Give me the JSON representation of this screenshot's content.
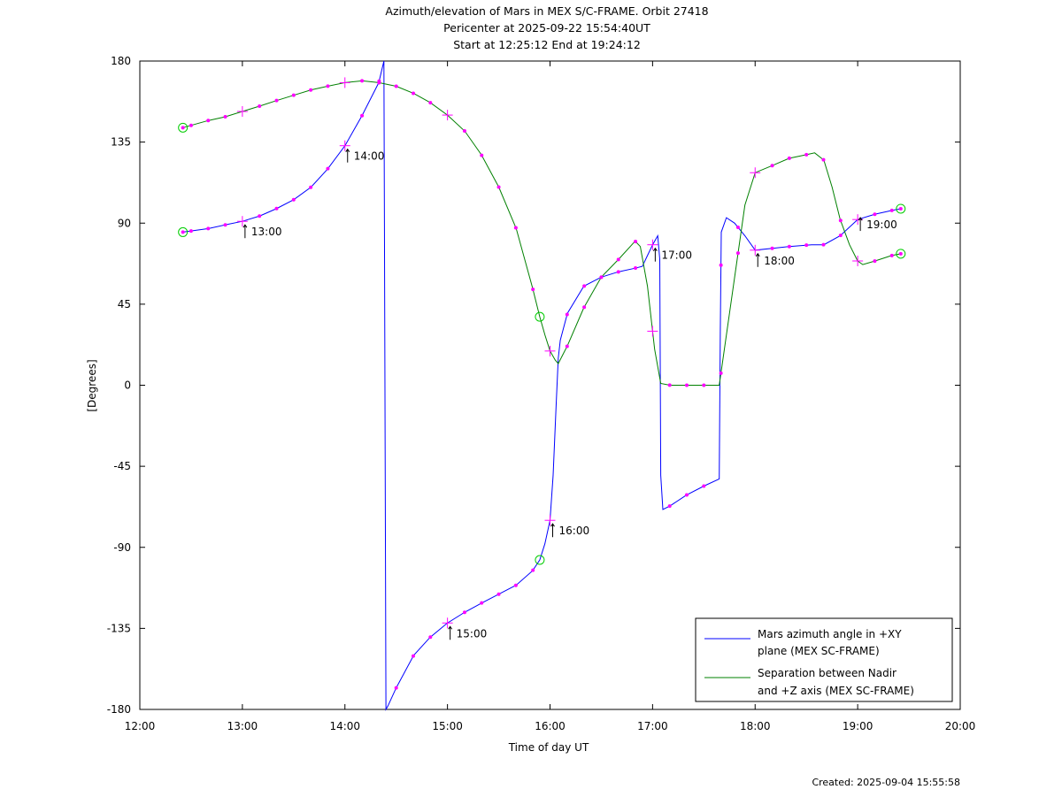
{
  "titles": [
    "Azimuth/elevation of Mars in MEX S/C-FRAME.  Orbit 27418",
    "Pericenter at 2025-09-22 15:54:40UT",
    "Start at 12:25:12 End at 19:24:12"
  ],
  "footer": "Created: 2025-09-04 15:55:58",
  "chart_data": {
    "type": "line",
    "xlabel": "Time of day UT",
    "ylabel": "[Degrees]",
    "xlim": [
      12.0,
      20.0
    ],
    "ylim": [
      -180,
      180
    ],
    "x_ticks": [
      12,
      13,
      14,
      15,
      16,
      17,
      18,
      19,
      20
    ],
    "x_tick_labels": [
      "12:00",
      "13:00",
      "14:00",
      "15:00",
      "16:00",
      "17:00",
      "18:00",
      "19:00",
      "20:00"
    ],
    "y_ticks": [
      180,
      135,
      90,
      45,
      0,
      -45,
      -90,
      -135,
      -180
    ],
    "y_tick_labels": [
      "180",
      "135",
      "90",
      "45",
      "0",
      "-45",
      "-90",
      "-135",
      "-180"
    ],
    "legend_position": "bottom-right",
    "colors": {
      "azimuth": "#0000ff",
      "separation": "#008000",
      "markers": "#ff00ff",
      "circles": "#00cc00"
    },
    "series": [
      {
        "name": "Mars azimuth angle in +XY plane (MEX SC-FRAME)",
        "legend_lines": [
          "Mars azimuth angle in +XY",
          "plane (MEX SC-FRAME)"
        ],
        "color": "#0000ff",
        "x": [
          12.42,
          12.67,
          12.83,
          13.0,
          13.17,
          13.33,
          13.5,
          13.67,
          13.83,
          14.0,
          14.17,
          14.33,
          14.38,
          14.385,
          14.4,
          14.42,
          14.5,
          14.67,
          14.83,
          15.0,
          15.17,
          15.33,
          15.5,
          15.67,
          15.83,
          15.9,
          15.95,
          16.0,
          16.03,
          16.06,
          16.08,
          16.1,
          16.17,
          16.33,
          16.5,
          16.67,
          16.83,
          16.9,
          16.95,
          17.0,
          17.05,
          17.07,
          17.08,
          17.1,
          17.17,
          17.33,
          17.5,
          17.65,
          17.66,
          17.67,
          17.72,
          17.8,
          17.9,
          18.0,
          18.17,
          18.33,
          18.55,
          18.67,
          18.83,
          19.0,
          19.17,
          19.33,
          19.42
        ],
        "y": [
          85,
          87,
          89,
          91,
          94,
          98,
          103,
          110,
          120,
          133,
          150,
          168,
          180,
          90,
          -180,
          -178,
          -168,
          -150,
          -140,
          -132,
          -126,
          -121,
          -116,
          -111,
          -103,
          -97,
          -88,
          -75,
          -50,
          -10,
          15,
          25,
          40,
          55,
          60,
          63,
          65,
          66,
          72,
          78,
          83,
          70,
          -50,
          -69,
          -67,
          -61,
          -56,
          -52,
          30,
          85,
          93,
          90,
          83,
          75,
          76,
          77,
          78,
          78,
          83,
          92,
          95,
          97,
          98
        ]
      },
      {
        "name": "Separation between Nadir and +Z axis (MEX SC-FRAME)",
        "legend_lines": [
          "Separation between Nadir",
          "and +Z axis (MEX SC-FRAME)"
        ],
        "color": "#008000",
        "x": [
          12.42,
          12.67,
          12.83,
          13.0,
          13.17,
          13.33,
          13.5,
          13.67,
          13.83,
          14.0,
          14.17,
          14.33,
          14.5,
          14.67,
          14.83,
          15.0,
          15.17,
          15.33,
          15.5,
          15.67,
          15.83,
          15.9,
          15.95,
          16.0,
          16.05,
          16.08,
          16.17,
          16.33,
          16.5,
          16.67,
          16.83,
          16.88,
          16.95,
          17.02,
          17.08,
          17.17,
          17.33,
          17.5,
          17.65,
          17.7,
          17.8,
          17.9,
          18.0,
          18.17,
          18.33,
          18.5,
          18.58,
          18.67,
          18.75,
          18.83,
          18.92,
          19.0,
          19.05,
          19.17,
          19.33,
          19.42
        ],
        "y": [
          143,
          147,
          149,
          152,
          155,
          158,
          161,
          164,
          166,
          168,
          169,
          168,
          166,
          162,
          157,
          150,
          141,
          128,
          110,
          87,
          54,
          38,
          28,
          19,
          14,
          12,
          22,
          43,
          60,
          70,
          80,
          77,
          55,
          20,
          1,
          0,
          0,
          0,
          0,
          20,
          60,
          100,
          118,
          122,
          126,
          128,
          129,
          125,
          110,
          92,
          78,
          69,
          67,
          69,
          72,
          73
        ]
      }
    ],
    "hour_annotations": [
      {
        "label": "13:00",
        "x": 13.0,
        "y": 91
      },
      {
        "label": "14:00",
        "x": 14.0,
        "y": 133
      },
      {
        "label": "15:00",
        "x": 15.0,
        "y": -132
      },
      {
        "label": "16:00",
        "x": 16.0,
        "y": -75
      },
      {
        "label": "17:00",
        "x": 17.0,
        "y": 78
      },
      {
        "label": "18:00",
        "x": 18.0,
        "y": 75
      },
      {
        "label": "19:00",
        "x": 19.0,
        "y": 95
      }
    ]
  }
}
